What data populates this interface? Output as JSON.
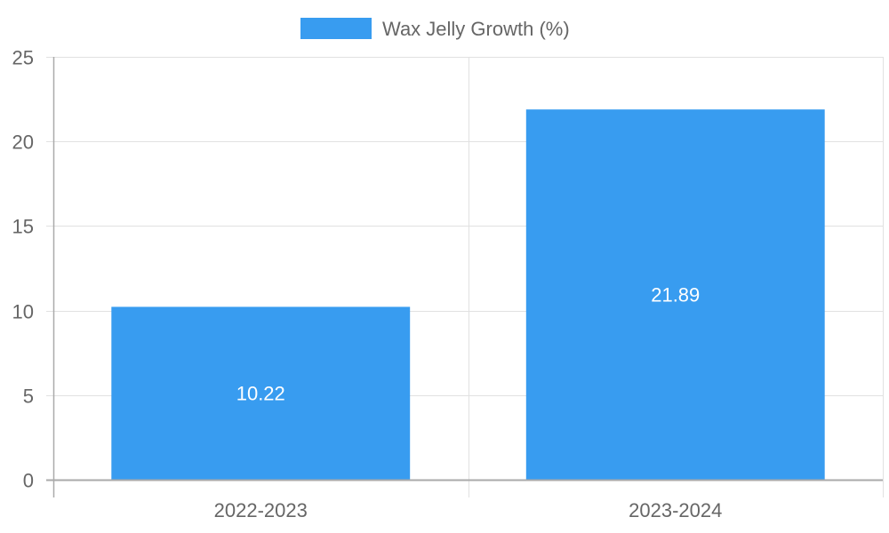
{
  "chart_data": {
    "type": "bar",
    "title": "",
    "xlabel": "",
    "ylabel": "",
    "categories": [
      "2022-2023",
      "2023-2024"
    ],
    "series": [
      {
        "name": "Wax Jelly Growth (%)",
        "values": [
          10.22,
          21.89
        ],
        "color": "#389cf0"
      }
    ],
    "data_labels": [
      "10.22",
      "21.89"
    ],
    "ylim": [
      0,
      25
    ],
    "yticks": [
      0,
      5,
      10,
      15,
      20,
      25
    ],
    "ytick_labels": [
      "0",
      "5",
      "10",
      "15",
      "20",
      "25"
    ],
    "grid": true,
    "legend_position": "top-center"
  }
}
